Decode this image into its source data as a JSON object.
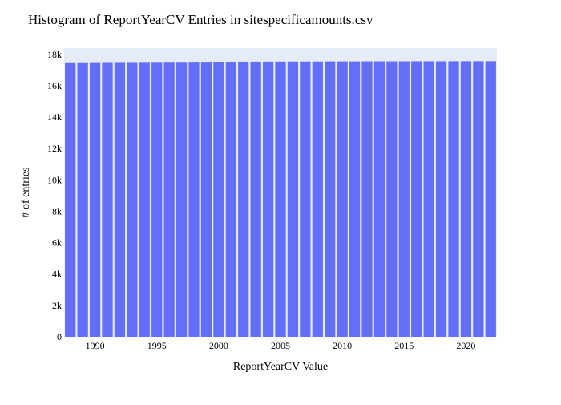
{
  "chart_data": {
    "type": "bar",
    "title": "Histogram of ReportYearCV Entries in sitespecificamounts.csv",
    "xlabel": "ReportYearCV Value",
    "ylabel": "# of entries",
    "x": [
      1988,
      1989,
      1990,
      1991,
      1992,
      1993,
      1994,
      1995,
      1996,
      1997,
      1998,
      1999,
      2000,
      2001,
      2002,
      2003,
      2004,
      2005,
      2006,
      2007,
      2008,
      2009,
      2010,
      2011,
      2012,
      2013,
      2014,
      2015,
      2016,
      2017,
      2018,
      2019,
      2020,
      2021,
      2022
    ],
    "values": [
      17490,
      17495,
      17500,
      17505,
      17510,
      17510,
      17515,
      17515,
      17520,
      17520,
      17525,
      17525,
      17530,
      17530,
      17535,
      17535,
      17540,
      17540,
      17545,
      17545,
      17545,
      17550,
      17550,
      17550,
      17555,
      17555,
      17555,
      17555,
      17560,
      17560,
      17560,
      17560,
      17565,
      17565,
      17565
    ],
    "xlim": [
      1987.5,
      2022.5
    ],
    "ylim": [
      0,
      18400
    ],
    "x_ticks": [
      1990,
      1995,
      2000,
      2005,
      2010,
      2015,
      2020
    ],
    "y_ticks": [
      {
        "value": 0,
        "label": "0"
      },
      {
        "value": 2000,
        "label": "2k"
      },
      {
        "value": 4000,
        "label": "4k"
      },
      {
        "value": 6000,
        "label": "6k"
      },
      {
        "value": 8000,
        "label": "8k"
      },
      {
        "value": 10000,
        "label": "10k"
      },
      {
        "value": 12000,
        "label": "12k"
      },
      {
        "value": 14000,
        "label": "14k"
      },
      {
        "value": 16000,
        "label": "16k"
      },
      {
        "value": 18000,
        "label": "18k"
      }
    ],
    "grid": false,
    "colors": {
      "bar": "#636efa",
      "plot_bg": "#e5ecf6",
      "text": "#2a3f5f",
      "title": "#000000"
    }
  }
}
